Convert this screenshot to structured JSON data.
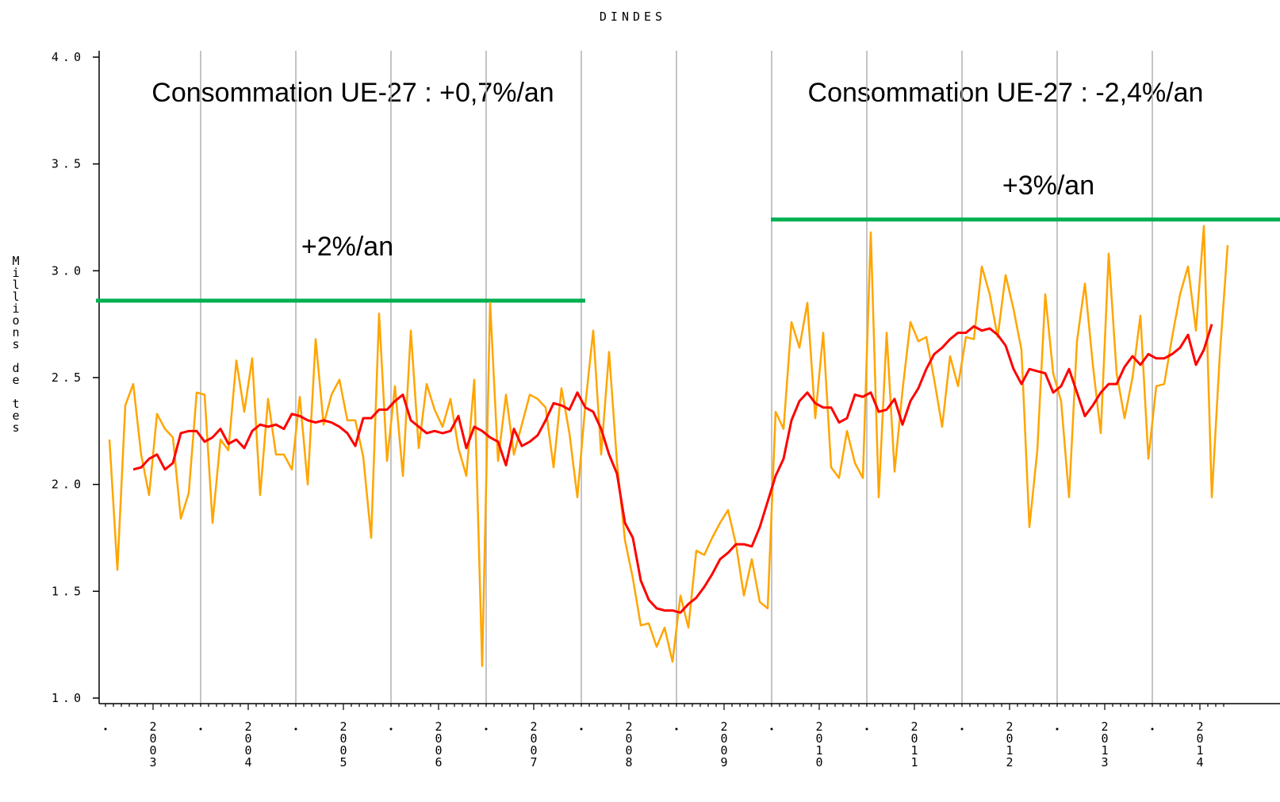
{
  "chart_data": {
    "type": "line",
    "title": "DINDES",
    "y_label": "Millions de tes",
    "categories": [
      null,
      null,
      null,
      null,
      null,
      null,
      "2003",
      null,
      null,
      null,
      null,
      null,
      null,
      null,
      null,
      null,
      null,
      null,
      "2004",
      null,
      null,
      null,
      null,
      null,
      null,
      null,
      null,
      null,
      null,
      null,
      "2005",
      null,
      null,
      null,
      null,
      null,
      null,
      null,
      null,
      null,
      null,
      null,
      "2006",
      null,
      null,
      null,
      null,
      null,
      null,
      null,
      null,
      null,
      null,
      null,
      "2007",
      null,
      null,
      null,
      null,
      null,
      null,
      null,
      null,
      null,
      null,
      null,
      "2008",
      null,
      null,
      null,
      null,
      null,
      null,
      null,
      null,
      null,
      null,
      null,
      "2009",
      null,
      null,
      null,
      null,
      null,
      null,
      null,
      null,
      null,
      null,
      null,
      "2010",
      null,
      null,
      null,
      null,
      null,
      null,
      null,
      null,
      null,
      null,
      null,
      "2011",
      null,
      null,
      null,
      null,
      null,
      null,
      null,
      null,
      null,
      null,
      null,
      "2012",
      null,
      null,
      null,
      null,
      null,
      null,
      null,
      null,
      null,
      null,
      null,
      "2013",
      null,
      null,
      null,
      null,
      null,
      null,
      null,
      null,
      null,
      null,
      null,
      "2014",
      null,
      null,
      null
    ],
    "series": [
      {
        "color": "#ffa500",
        "values": [
          2.21,
          1.6,
          2.37,
          2.47,
          2.14,
          1.95,
          2.33,
          2.26,
          2.22,
          1.84,
          1.96,
          2.43,
          2.42,
          1.82,
          2.21,
          2.16,
          2.58,
          2.34,
          2.59,
          1.95,
          2.4,
          2.14,
          2.14,
          2.07,
          2.41,
          2.0,
          2.68,
          2.28,
          2.42,
          2.49,
          2.3,
          2.3,
          2.13,
          1.75,
          2.8,
          2.11,
          2.46,
          2.04,
          2.72,
          2.17,
          2.47,
          2.35,
          2.27,
          2.4,
          2.17,
          2.04,
          2.49,
          1.15,
          2.85,
          2.11,
          2.42,
          2.14,
          2.28,
          2.42,
          2.4,
          2.36,
          2.08,
          2.45,
          2.24,
          1.94,
          2.37,
          2.72,
          2.14,
          2.62,
          2.1,
          1.74,
          1.56,
          1.34,
          1.35,
          1.24,
          1.33,
          1.17,
          1.48,
          1.33,
          1.69,
          1.67,
          1.75,
          1.82,
          1.88,
          1.72,
          1.48,
          1.65,
          1.45,
          1.42,
          2.34,
          2.26,
          2.76,
          2.64,
          2.85,
          2.31,
          2.71,
          2.08,
          2.03,
          2.25,
          2.1,
          2.03,
          3.18,
          1.94,
          2.71,
          2.06,
          2.44,
          2.76,
          2.67,
          2.69,
          2.49,
          2.27,
          2.6,
          2.46,
          2.69,
          2.68,
          3.02,
          2.89,
          2.69,
          2.98,
          2.82,
          2.63,
          1.8,
          2.16,
          2.89,
          2.52,
          2.39,
          1.94,
          2.67,
          2.94,
          2.56,
          2.24,
          3.08,
          2.52,
          2.31,
          2.5,
          2.79,
          2.12,
          2.46,
          2.47,
          2.69,
          2.89,
          3.02,
          2.72,
          3.21,
          1.94,
          2.6,
          3.12
        ]
      },
      {
        "color": "#ff0000",
        "values": [
          null,
          null,
          null,
          2.07,
          2.08,
          2.12,
          2.14,
          2.07,
          2.1,
          2.24,
          2.25,
          2.25,
          2.2,
          2.22,
          2.26,
          2.19,
          2.21,
          2.17,
          2.25,
          2.28,
          2.27,
          2.28,
          2.26,
          2.33,
          2.32,
          2.3,
          2.29,
          2.3,
          2.29,
          2.27,
          2.24,
          2.18,
          2.31,
          2.31,
          2.35,
          2.35,
          2.39,
          2.42,
          2.3,
          2.27,
          2.24,
          2.25,
          2.24,
          2.25,
          2.32,
          2.17,
          2.27,
          2.25,
          2.22,
          2.2,
          2.09,
          2.26,
          2.18,
          2.2,
          2.23,
          2.3,
          2.38,
          2.37,
          2.35,
          2.43,
          2.36,
          2.34,
          2.26,
          2.14,
          2.05,
          1.82,
          1.75,
          1.55,
          1.46,
          1.42,
          1.41,
          1.41,
          1.4,
          1.44,
          1.47,
          1.52,
          1.58,
          1.65,
          1.68,
          1.72,
          1.72,
          1.71,
          1.8,
          1.92,
          2.04,
          2.12,
          2.3,
          2.39,
          2.43,
          2.38,
          2.36,
          2.36,
          2.29,
          2.31,
          2.42,
          2.41,
          2.43,
          2.34,
          2.35,
          2.4,
          2.28,
          2.39,
          2.45,
          2.54,
          2.61,
          2.64,
          2.68,
          2.71,
          2.71,
          2.74,
          2.72,
          2.73,
          2.7,
          2.65,
          2.54,
          2.47,
          2.54,
          2.53,
          2.52,
          2.43,
          2.46,
          2.54,
          2.43,
          2.32,
          2.37,
          2.43,
          2.47,
          2.47,
          2.55,
          2.6,
          2.56,
          2.61,
          2.59,
          2.59,
          2.61,
          2.64,
          2.7,
          2.56,
          2.63,
          2.75,
          null,
          null
        ]
      }
    ],
    "ylim": [
      1.0,
      4.0
    ],
    "yticks": [
      {
        "value": 1.0,
        "label": "1.0"
      },
      {
        "value": 1.5,
        "label": "1.5"
      },
      {
        "value": 2.0,
        "label": "2.0"
      },
      {
        "value": 2.5,
        "label": "2.5"
      },
      {
        "value": 3.0,
        "label": "3.0"
      },
      {
        "value": 3.5,
        "label": "3.5"
      },
      {
        "value": 4.0,
        "label": "4.0"
      }
    ],
    "grid": "x",
    "trend_lines": [
      {
        "label": "+2%/an",
        "value": 2.86,
        "color": "#00b050"
      },
      {
        "label": "+3%/an",
        "value": 3.24,
        "color": "#00b050"
      }
    ],
    "annotations": [
      "Consommation UE-27 : +0,7%/an",
      "Consommation UE-27 : -2,4%/an"
    ]
  }
}
